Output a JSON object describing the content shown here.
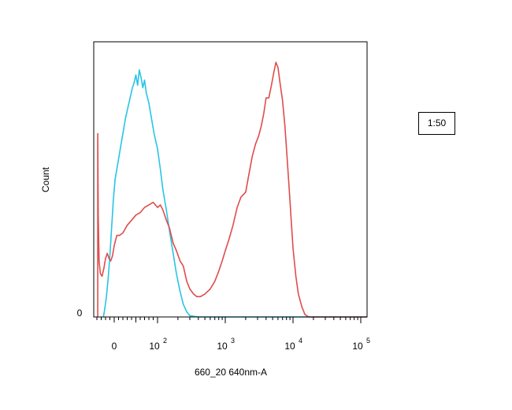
{
  "chart_data": {
    "type": "area",
    "title": "",
    "xlabel": "660_20 640nm-A",
    "ylabel": "Count",
    "x_scale": "biexponential",
    "x_tick_labels": [
      {
        "value": 0,
        "base": "0",
        "exp": ""
      },
      {
        "value": 100,
        "base": "10",
        "exp": "2"
      },
      {
        "value": 1000,
        "base": "10",
        "exp": "3"
      },
      {
        "value": 10000,
        "base": "10",
        "exp": "4"
      },
      {
        "value": 100000,
        "base": "10",
        "exp": "5"
      }
    ],
    "y_tick_labels": [
      {
        "value": 0,
        "label": "0"
      }
    ],
    "ylim": [
      0,
      100
    ],
    "legend": {
      "placement": "right",
      "label": "1:50"
    },
    "series": [
      {
        "color": "#29c4e4",
        "points": [
          [
            -25,
            0
          ],
          [
            -22,
            3
          ],
          [
            -18,
            8
          ],
          [
            -14,
            15
          ],
          [
            -10,
            24
          ],
          [
            -6,
            35
          ],
          [
            -2,
            46
          ],
          [
            2,
            54
          ],
          [
            6,
            58
          ],
          [
            10,
            62
          ],
          [
            14,
            66
          ],
          [
            18,
            70
          ],
          [
            22,
            74
          ],
          [
            26,
            78
          ],
          [
            30,
            81
          ],
          [
            34,
            84
          ],
          [
            38,
            87
          ],
          [
            42,
            90
          ],
          [
            46,
            92
          ],
          [
            50,
            95
          ],
          [
            54,
            91
          ],
          [
            58,
            97
          ],
          [
            62,
            94
          ],
          [
            66,
            90
          ],
          [
            70,
            93
          ],
          [
            74,
            88
          ],
          [
            80,
            84
          ],
          [
            86,
            78
          ],
          [
            92,
            72
          ],
          [
            100,
            66
          ],
          [
            110,
            58
          ],
          [
            120,
            50
          ],
          [
            135,
            42
          ],
          [
            150,
            34
          ],
          [
            170,
            25
          ],
          [
            190,
            17
          ],
          [
            215,
            10
          ],
          [
            240,
            5
          ],
          [
            270,
            2
          ],
          [
            300,
            0.5
          ],
          [
            400,
            0
          ],
          [
            1000,
            0
          ],
          [
            10000,
            0
          ],
          [
            200000,
            0
          ]
        ]
      },
      {
        "color": "#e04c4c",
        "points": [
          [
            -38,
            0
          ],
          [
            -38,
            72
          ],
          [
            -37,
            40
          ],
          [
            -35,
            22
          ],
          [
            -32,
            17
          ],
          [
            -28,
            16
          ],
          [
            -24,
            19
          ],
          [
            -20,
            23
          ],
          [
            -16,
            25
          ],
          [
            -12,
            23
          ],
          [
            -8,
            22
          ],
          [
            -4,
            24
          ],
          [
            0,
            28
          ],
          [
            6,
            32
          ],
          [
            12,
            32
          ],
          [
            20,
            33
          ],
          [
            30,
            36
          ],
          [
            40,
            38
          ],
          [
            50,
            40
          ],
          [
            60,
            41
          ],
          [
            70,
            43
          ],
          [
            80,
            44
          ],
          [
            90,
            45
          ],
          [
            100,
            43
          ],
          [
            110,
            44
          ],
          [
            120,
            42
          ],
          [
            135,
            38
          ],
          [
            150,
            35
          ],
          [
            170,
            29
          ],
          [
            190,
            26
          ],
          [
            215,
            22
          ],
          [
            240,
            20
          ],
          [
            270,
            14
          ],
          [
            300,
            11
          ],
          [
            340,
            9
          ],
          [
            380,
            8
          ],
          [
            430,
            8
          ],
          [
            500,
            9
          ],
          [
            600,
            11
          ],
          [
            700,
            14
          ],
          [
            800,
            18
          ],
          [
            900,
            22
          ],
          [
            1000,
            26
          ],
          [
            1150,
            31
          ],
          [
            1300,
            36
          ],
          [
            1500,
            43
          ],
          [
            1700,
            47
          ],
          [
            2000,
            49
          ],
          [
            2200,
            55
          ],
          [
            2500,
            63
          ],
          [
            2800,
            68
          ],
          [
            3100,
            71
          ],
          [
            3400,
            75
          ],
          [
            3700,
            80
          ],
          [
            4000,
            86
          ],
          [
            4400,
            86
          ],
          [
            4800,
            91
          ],
          [
            5200,
            96
          ],
          [
            5600,
            100
          ],
          [
            6000,
            98
          ],
          [
            6500,
            91
          ],
          [
            7000,
            85
          ],
          [
            7600,
            75
          ],
          [
            8200,
            62
          ],
          [
            8800,
            50
          ],
          [
            9400,
            38
          ],
          [
            10000,
            27
          ],
          [
            11000,
            16
          ],
          [
            12000,
            9
          ],
          [
            13500,
            4
          ],
          [
            15000,
            1
          ],
          [
            17000,
            0
          ],
          [
            200000,
            0
          ]
        ]
      }
    ]
  },
  "legend_label": "1:50"
}
